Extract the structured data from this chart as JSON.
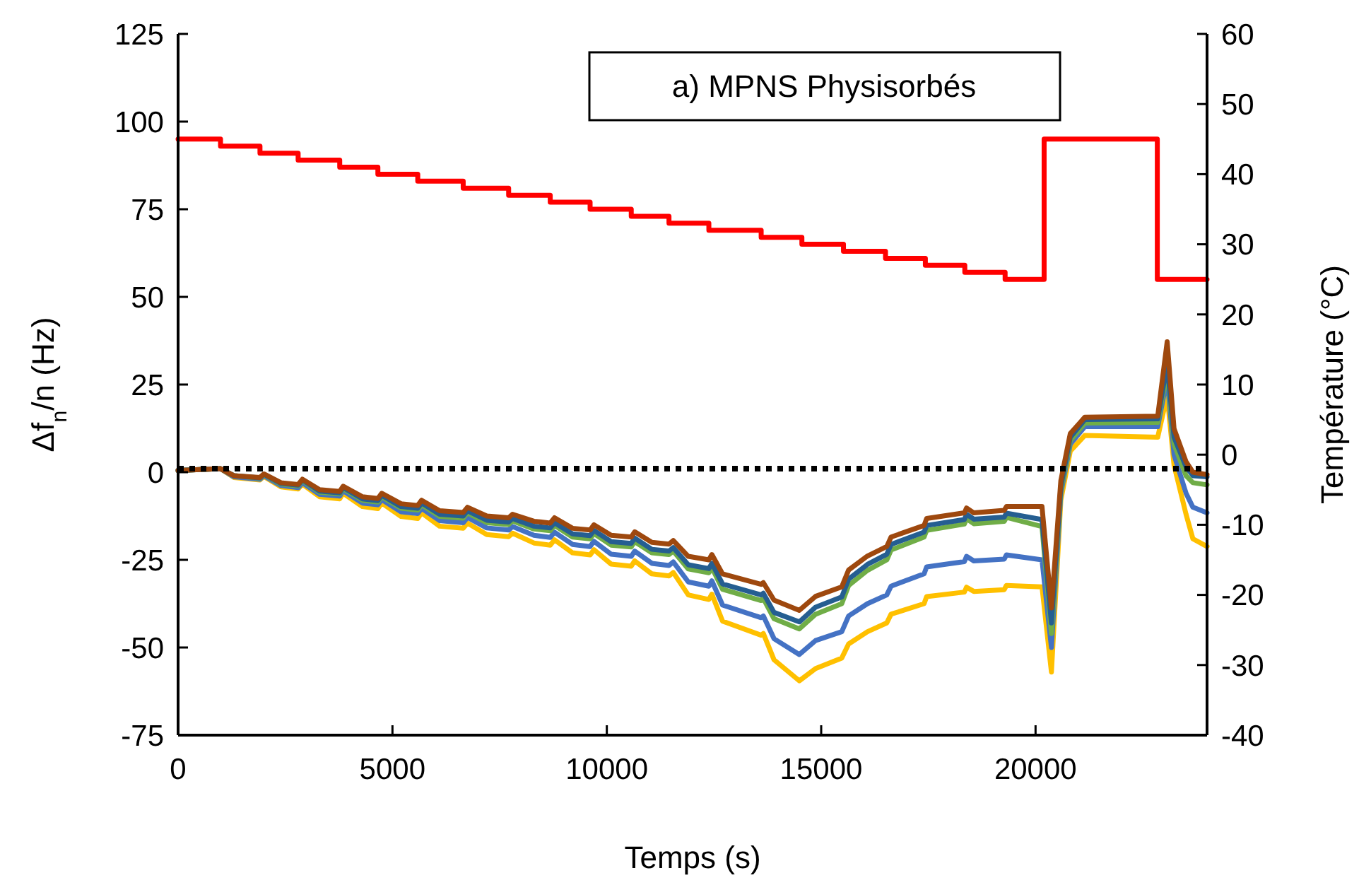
{
  "chart_data": {
    "type": "line",
    "xlabel": "Temps (s)",
    "ylabel": "Δf$_{n}$/n (Hz)",
    "y2label": "Température (°C)",
    "annotations": [
      "a) MPNS Physisorbés"
    ],
    "x": [
      0,
      990,
      1300,
      1910,
      2000,
      2400,
      2800,
      2900,
      3300,
      3770,
      3850,
      4300,
      4660,
      4750,
      5200,
      5590,
      5680,
      6100,
      6650,
      6750,
      7200,
      7710,
      7800,
      8300,
      8680,
      8780,
      9200,
      9610,
      9700,
      10100,
      10570,
      10650,
      11050,
      11450,
      11550,
      11900,
      12380,
      12450,
      12700,
      13600,
      13650,
      13900,
      14490,
      14870,
      15480,
      15640,
      16080,
      16530,
      16630,
      17400,
      17460,
      18340,
      18390,
      18560,
      19270,
      19320,
      20150,
      20370,
      20590,
      20810,
      21150,
      22850,
      23070,
      23230,
      23510,
      23670,
      24000
    ],
    "series": [
      {
        "color": "#ffc000",
        "values": [
          0.5,
          1,
          -1.5,
          -2.2,
          -1.2,
          -4.2,
          -4.8,
          -3.4,
          -7,
          -7.6,
          -6,
          -9.8,
          -10.4,
          -8.8,
          -12.6,
          -13.2,
          -11.6,
          -15.4,
          -16,
          -14.5,
          -17.8,
          -18.4,
          -17.4,
          -20.2,
          -20.8,
          -19.3,
          -23,
          -23.6,
          -22.1,
          -26.2,
          -26.8,
          -25.3,
          -29,
          -29.6,
          -28.6,
          -35,
          -36.3,
          -34.8,
          -42.5,
          -46.5,
          -46,
          -53.5,
          -59.5,
          -56,
          -53,
          -49,
          -45.5,
          -43,
          -40.5,
          -37.5,
          -35.5,
          -34.2,
          -32.8,
          -34,
          -33.5,
          -32.3,
          -32.7,
          -57,
          -8,
          6,
          10.5,
          10,
          22,
          2,
          -12,
          -19,
          -21.2
        ]
      },
      {
        "color": "#4472c4",
        "values": [
          0.5,
          1,
          -1.3,
          -2,
          -1,
          -3.8,
          -4.4,
          -3,
          -6.3,
          -6.8,
          -5.3,
          -8.8,
          -9.3,
          -7.8,
          -11.3,
          -11.8,
          -10.3,
          -13.8,
          -14.4,
          -12.9,
          -15.9,
          -16.5,
          -15.5,
          -18,
          -18.6,
          -17.1,
          -20.6,
          -21.2,
          -19.7,
          -23.4,
          -24,
          -22.5,
          -26,
          -26.6,
          -25.6,
          -31.3,
          -32.5,
          -31,
          -37.9,
          -41.5,
          -41,
          -47.5,
          -52,
          -48,
          -45.5,
          -41,
          -37.5,
          -35,
          -32.5,
          -29,
          -27,
          -25.5,
          -24,
          -25.3,
          -24.8,
          -23.6,
          -25,
          -50,
          -6,
          8,
          13,
          13,
          27,
          5,
          -6,
          -10,
          -11.6
        ]
      },
      {
        "color": "#70ad47",
        "values": [
          0.5,
          1,
          -1,
          -1.7,
          -0.7,
          -3.4,
          -3.9,
          -2.4,
          -5.7,
          -6.2,
          -4.7,
          -8,
          -8.5,
          -7,
          -10.3,
          -10.8,
          -9.3,
          -12.6,
          -13.1,
          -11.6,
          -14.4,
          -14.9,
          -13.9,
          -16.2,
          -16.7,
          -15.2,
          -18.5,
          -19,
          -17.5,
          -20.8,
          -21.3,
          -19.8,
          -23,
          -23.5,
          -22.5,
          -27.6,
          -28.7,
          -27.2,
          -33.4,
          -36.6,
          -36,
          -41.8,
          -44.7,
          -40.5,
          -37.5,
          -32.3,
          -28,
          -25,
          -22.2,
          -18.5,
          -16.6,
          -14.8,
          -13.3,
          -14.7,
          -14,
          -12.9,
          -15.5,
          -46,
          -5,
          9,
          14,
          14.2,
          29,
          8,
          -1,
          -3,
          -3.6
        ]
      },
      {
        "color": "#255e91",
        "values": [
          0.5,
          1,
          -1,
          -1.6,
          -0.6,
          -3.2,
          -3.7,
          -2.2,
          -5.4,
          -5.9,
          -4.4,
          -7.6,
          -8.1,
          -6.6,
          -9.8,
          -10.3,
          -8.8,
          -12,
          -12.5,
          -11,
          -13.7,
          -14.2,
          -13.2,
          -15.4,
          -15.9,
          -14.4,
          -17.6,
          -18.1,
          -16.6,
          -19.8,
          -20.3,
          -18.8,
          -22,
          -22.5,
          -21.5,
          -26.4,
          -27.5,
          -26,
          -31.9,
          -35,
          -34.5,
          -40,
          -42.7,
          -38.5,
          -35.6,
          -30.5,
          -26.3,
          -23.4,
          -20.6,
          -17.1,
          -15.2,
          -13.5,
          -12,
          -13.4,
          -12.8,
          -11.7,
          -13.5,
          -43,
          -4,
          10,
          15,
          15.2,
          31,
          10,
          1.5,
          -1,
          -1.3
        ]
      },
      {
        "color": "#9e480e",
        "values": [
          0.5,
          1,
          -1,
          -1.5,
          -0.5,
          -3,
          -3.5,
          -2,
          -5,
          -5.5,
          -4,
          -7,
          -7.5,
          -6,
          -9,
          -9.5,
          -8,
          -11,
          -11.5,
          -10,
          -12.5,
          -13,
          -12,
          -14,
          -14.5,
          -13,
          -16,
          -16.5,
          -15,
          -18,
          -18.5,
          -17,
          -20,
          -20.5,
          -19.5,
          -24,
          -25,
          -23.5,
          -29,
          -32,
          -31.5,
          -36.5,
          -39.4,
          -35.4,
          -32.7,
          -27.9,
          -23.9,
          -21.2,
          -18.5,
          -15.2,
          -13.2,
          -11.6,
          -10.2,
          -11.6,
          -10.9,
          -9.8,
          -9.8,
          -38.7,
          -2.4,
          11,
          15.7,
          16,
          37.2,
          12.4,
          3,
          0,
          -0.7
        ]
      },
      {
        "type": "step",
        "axis": "y2",
        "color": "#ff0000",
        "x": [
          0,
          990,
          1910,
          2800,
          3770,
          4660,
          5590,
          6650,
          7710,
          8680,
          9610,
          10570,
          11450,
          12380,
          13600,
          14550,
          15520,
          16500,
          17430,
          18350,
          19290,
          20200,
          22840,
          24000
        ],
        "values": [
          45,
          44,
          43,
          42,
          41,
          40,
          39,
          38,
          37,
          36,
          35,
          34,
          33,
          32,
          31,
          30,
          29,
          28,
          27,
          26,
          25,
          45,
          25,
          25
        ]
      }
    ],
    "xlim": [
      0,
      24000
    ],
    "xticks": [
      0,
      5000,
      10000,
      15000,
      20000
    ],
    "ylim": [
      -75,
      125
    ],
    "yticks": [
      -75,
      -50,
      -25,
      0,
      25,
      50,
      75,
      100,
      125
    ],
    "y2lim": [
      -40,
      60
    ],
    "y2ticks": [
      -40,
      -30,
      -20,
      -10,
      0,
      10,
      20,
      30,
      40,
      50,
      60
    ],
    "ref_lines": [
      {
        "axis": "y",
        "value": 1,
        "color": "#000000",
        "line_style": "dotted"
      }
    ],
    "grid": false,
    "marker": "none",
    "line_style": "solid"
  }
}
